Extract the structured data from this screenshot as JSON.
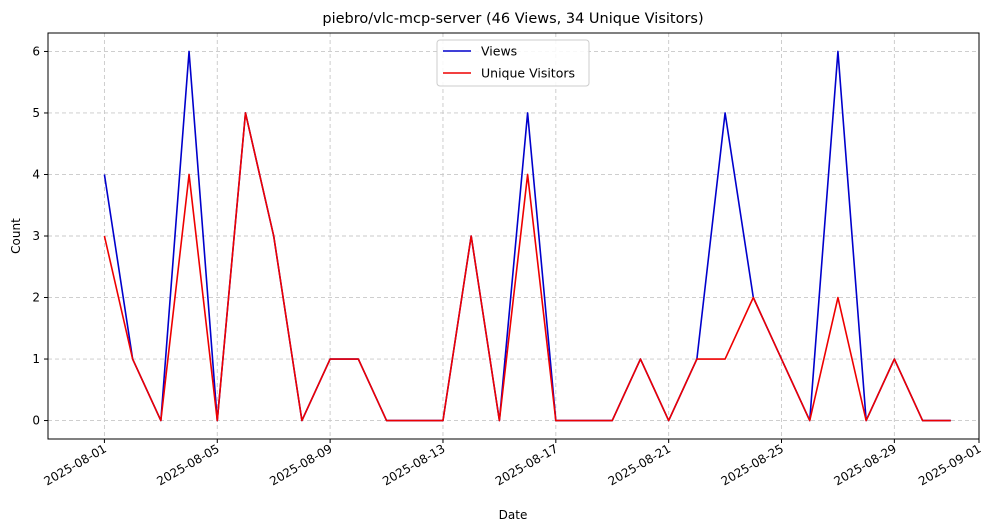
{
  "chart_data": {
    "type": "line",
    "title": "piebro/vlc-mcp-server (46 Views, 34 Unique Visitors)",
    "xlabel": "Date",
    "ylabel": "Count",
    "x": [
      "2025-08-01",
      "2025-08-02",
      "2025-08-03",
      "2025-08-04",
      "2025-08-05",
      "2025-08-06",
      "2025-08-07",
      "2025-08-08",
      "2025-08-09",
      "2025-08-10",
      "2025-08-11",
      "2025-08-12",
      "2025-08-13",
      "2025-08-14",
      "2025-08-15",
      "2025-08-16",
      "2025-08-17",
      "2025-08-18",
      "2025-08-19",
      "2025-08-20",
      "2025-08-21",
      "2025-08-22",
      "2025-08-23",
      "2025-08-24",
      "2025-08-25",
      "2025-08-26",
      "2025-08-27",
      "2025-08-28",
      "2025-08-29",
      "2025-08-30",
      "2025-08-31"
    ],
    "series": [
      {
        "name": "Views",
        "color": "#0000cc",
        "values": [
          4,
          1,
          0,
          6,
          0,
          5,
          3,
          0,
          1,
          1,
          0,
          0,
          0,
          3,
          0,
          5,
          0,
          0,
          0,
          1,
          0,
          1,
          5,
          2,
          1,
          0,
          6,
          0,
          1,
          0,
          0
        ]
      },
      {
        "name": "Unique Visitors",
        "color": "#ee0000",
        "values": [
          3,
          1,
          0,
          4,
          0,
          5,
          3,
          0,
          1,
          1,
          0,
          0,
          0,
          3,
          0,
          4,
          0,
          0,
          0,
          1,
          0,
          1,
          1,
          2,
          1,
          0,
          2,
          0,
          1,
          0,
          0
        ]
      }
    ],
    "xticks": [
      "2025-08-01",
      "2025-08-05",
      "2025-08-09",
      "2025-08-13",
      "2025-08-17",
      "2025-08-21",
      "2025-08-25",
      "2025-08-29",
      "2025-09-01"
    ],
    "yticks": [
      0,
      1,
      2,
      3,
      4,
      5,
      6
    ],
    "xlim": [
      "2025-07-30",
      "2025-09-01"
    ],
    "ylim": [
      -0.3,
      6.3
    ],
    "grid": true,
    "legend_position": "top-center"
  }
}
